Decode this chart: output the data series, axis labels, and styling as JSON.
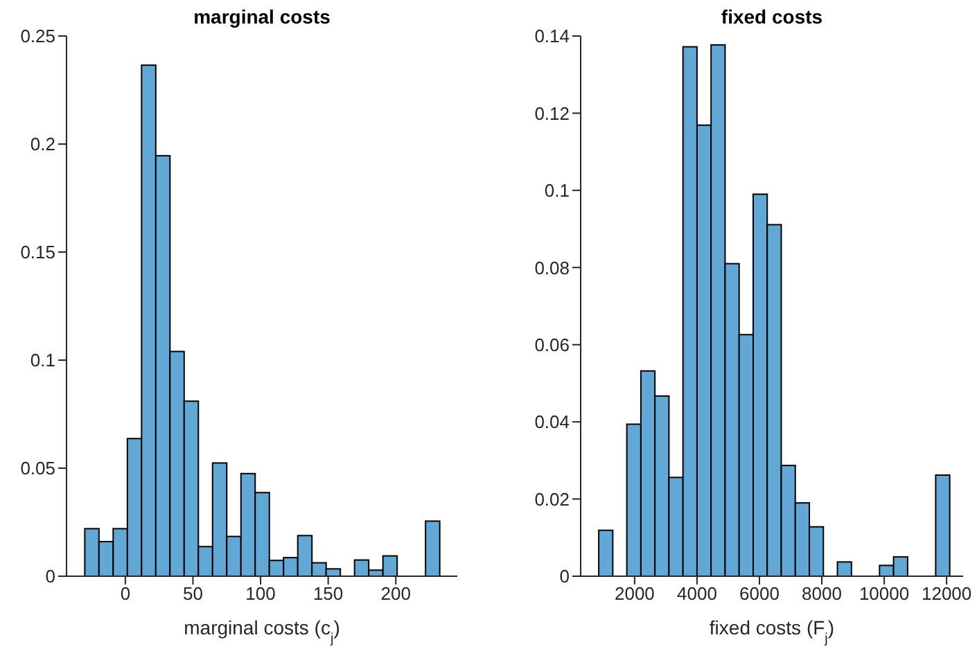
{
  "chart_data": [
    {
      "type": "histogram",
      "title": "marginal costs",
      "xlabel": "marginal costs (c$_{j}$)",
      "color": "#62a8d6",
      "bins": [
        -30,
        -19.5,
        -9,
        1.5,
        12,
        22.5,
        33,
        43.5,
        54,
        64.5,
        75,
        85.5,
        96,
        106.5,
        117,
        127.5,
        138,
        148.5,
        159,
        169.5,
        180,
        190.5,
        201,
        211.5,
        222,
        232.5
      ],
      "values": [
        0.022,
        0.016,
        0.022,
        0.0637,
        0.2365,
        0.1946,
        0.104,
        0.081,
        0.0137,
        0.0524,
        0.0184,
        0.0475,
        0.0387,
        0.0073,
        0.0086,
        0.0188,
        0.0062,
        0.0034,
        0,
        0.0075,
        0.0028,
        0.0094,
        0,
        0,
        0.0255
      ],
      "xlim": [
        -43.5,
        245.5
      ],
      "xticks": [
        0,
        50,
        100,
        150,
        200
      ],
      "ylim": [
        0,
        0.25
      ],
      "yticks": [
        0,
        0.05,
        0.1,
        0.15,
        0.2,
        0.25
      ]
    },
    {
      "type": "histogram",
      "title": "fixed costs",
      "xlabel": "fixed costs (F$_{j}$)",
      "color": "#62a8d6",
      "bins": [
        850,
        1300,
        1750,
        2200,
        2650,
        3100,
        3550,
        4000,
        4450,
        4900,
        5350,
        5800,
        6250,
        6700,
        7150,
        7600,
        8050,
        8500,
        8950,
        9400,
        9850,
        10300,
        10750,
        11200,
        11650,
        12100
      ],
      "values": [
        0.0119,
        0,
        0.0394,
        0.0532,
        0.0467,
        0.0256,
        0.1372,
        0.1169,
        0.1377,
        0.081,
        0.0626,
        0.099,
        0.0911,
        0.0287,
        0.019,
        0.0128,
        0,
        0.0037,
        0,
        0,
        0.0028,
        0.005,
        0,
        0,
        0.0262
      ],
      "xlim": [
        270,
        12530
      ],
      "xticks": [
        2000,
        4000,
        6000,
        8000,
        10000,
        12000
      ],
      "ylim": [
        0,
        0.14
      ],
      "yticks": [
        0,
        0.02,
        0.04,
        0.06,
        0.08,
        0.1,
        0.12,
        0.14
      ]
    }
  ]
}
